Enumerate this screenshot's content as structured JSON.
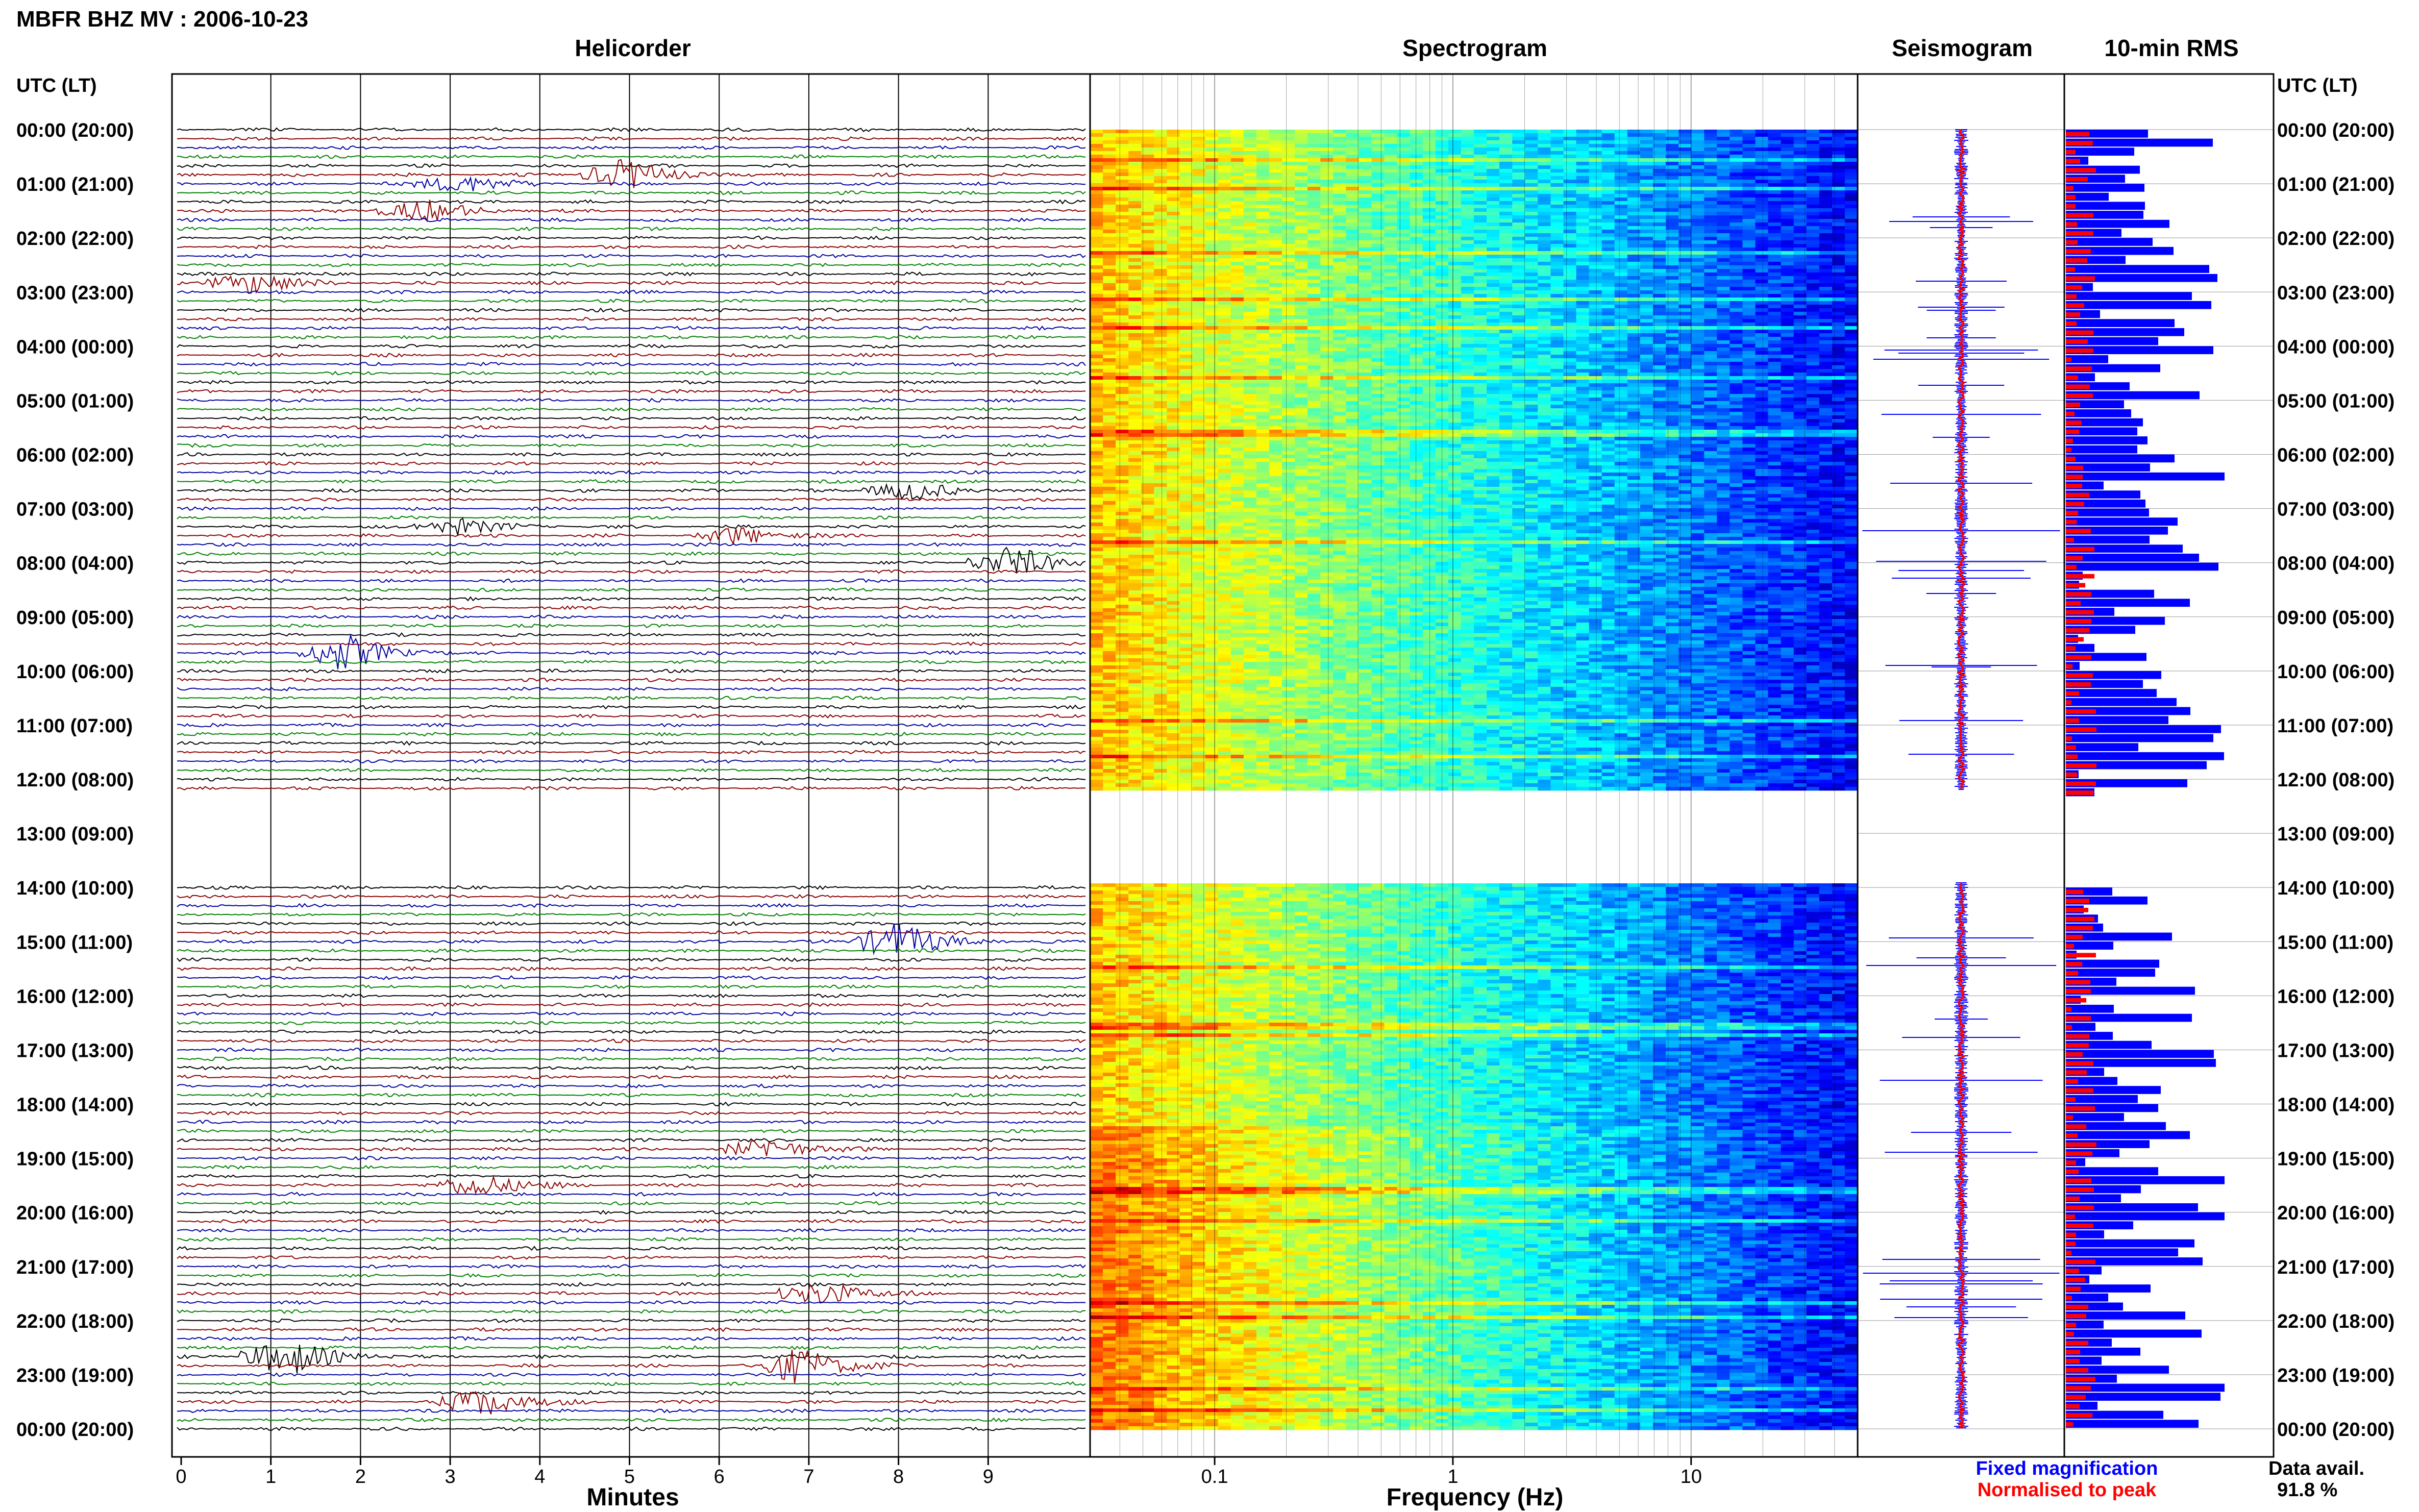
{
  "header": {
    "title": "MBFR BHZ MV : 2006-10-23",
    "time_axis_label": "UTC (LT)"
  },
  "panels": {
    "helicorder": "Helicorder",
    "spectrogram": "Spectrogram",
    "seismogram": "Seismogram",
    "rms": "10-min RMS"
  },
  "axes": {
    "helicorder_xlabel": "Minutes",
    "spectrogram_xlabel": "Frequency (Hz)"
  },
  "legend": {
    "fixed": "Fixed magnification",
    "normalised": "Normalised to peak",
    "fixed_color": "#0000ff",
    "normalised_color": "#ff0000"
  },
  "availability": {
    "label": "Data avail.",
    "value": "91.8 %"
  },
  "chart_data": [
    {
      "type": "line",
      "name": "helicorder",
      "title": "Helicorder",
      "xlabel": "Minutes",
      "x_ticks": [
        "0",
        "1",
        "2",
        "3",
        "4",
        "5",
        "6",
        "7",
        "8",
        "9"
      ],
      "xlim": [
        0,
        10
      ],
      "trace_colors": [
        "#000000",
        "#8b0000",
        "#0000a0",
        "#008000"
      ],
      "hour_labels": [
        "00:00 (20:00)",
        "01:00 (21:00)",
        "02:00 (22:00)",
        "03:00 (23:00)",
        "04:00 (00:00)",
        "05:00 (01:00)",
        "06:00 (02:00)",
        "07:00 (03:00)",
        "08:00 (04:00)",
        "09:00 (05:00)",
        "10:00 (06:00)",
        "11:00 (07:00)",
        "12:00 (08:00)",
        "13:00 (09:00)",
        "14:00 (10:00)",
        "15:00 (11:00)",
        "16:00 (12:00)",
        "17:00 (13:00)",
        "18:00 (14:00)",
        "19:00 (15:00)",
        "20:00 (16:00)",
        "21:00 (17:00)",
        "22:00 (18:00)",
        "23:00 (19:00)",
        "00:00 (20:00)"
      ],
      "data_gap_hours": [
        12,
        14
      ]
    },
    {
      "type": "heatmap",
      "name": "spectrogram",
      "title": "Spectrogram",
      "xlabel": "Frequency (Hz)",
      "x_scale": "log",
      "x_ticks": [
        "0.1",
        "1",
        "10"
      ],
      "xlim": [
        0.03,
        50
      ],
      "colormap": "jet"
    },
    {
      "type": "bar",
      "name": "rms",
      "title": "10-min RMS",
      "series": [
        {
          "name": "Fixed magnification",
          "color": "#0000ff"
        },
        {
          "name": "Normalised to peak",
          "color": "#ff0000"
        }
      ]
    }
  ]
}
